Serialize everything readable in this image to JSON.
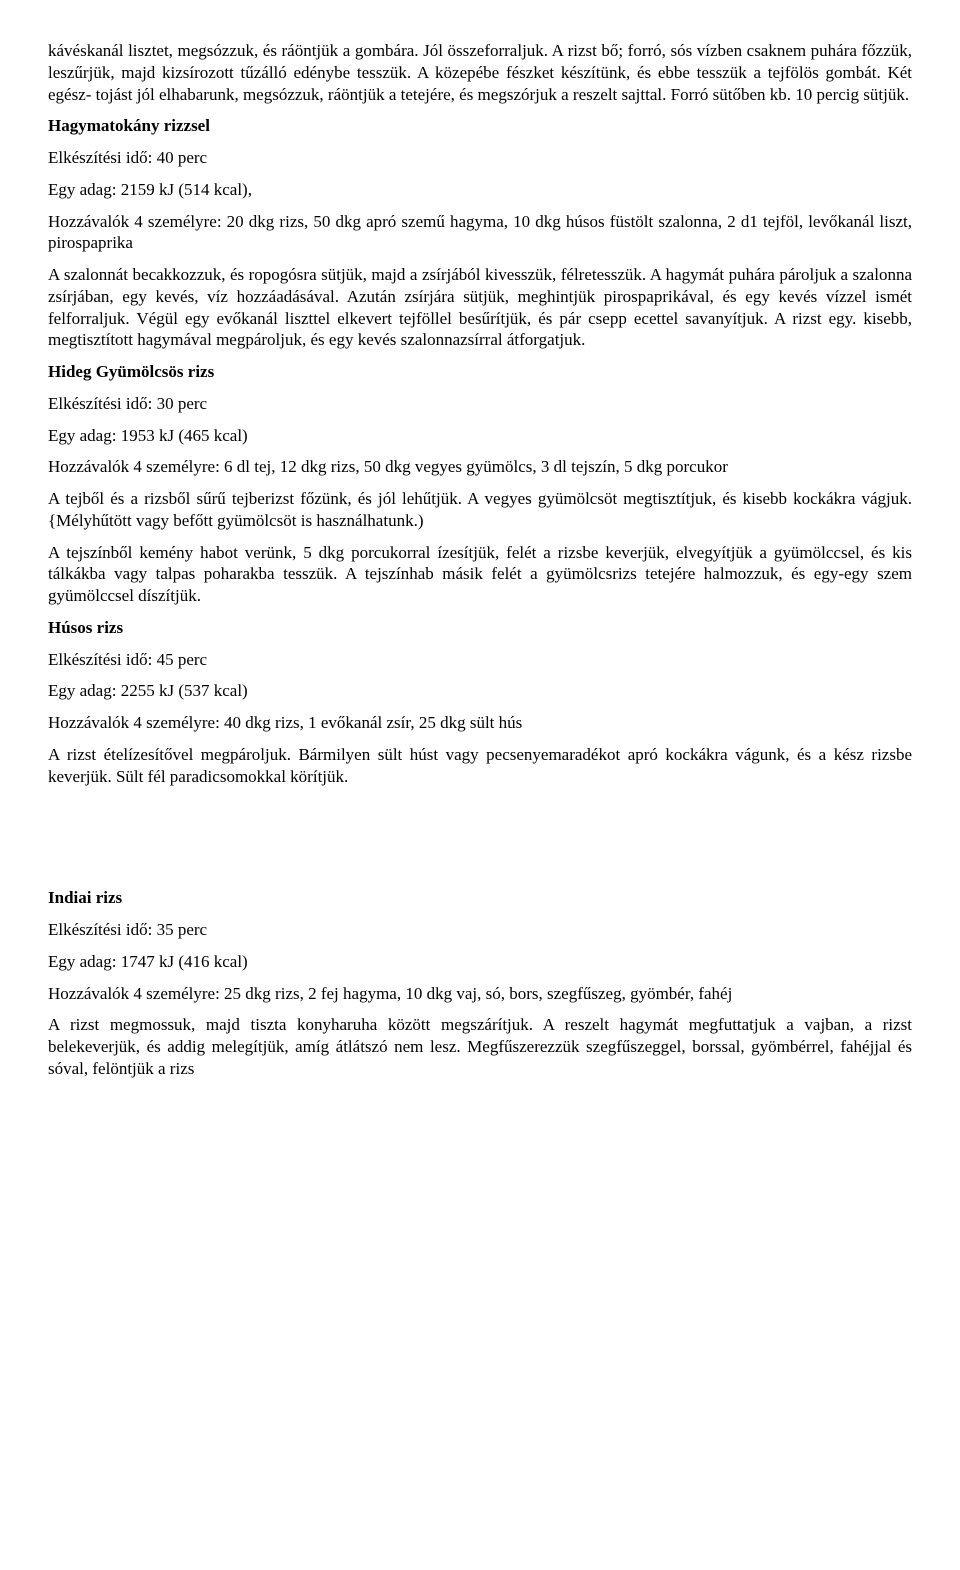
{
  "paragraphs": [
    {
      "name": "intro-p1",
      "bold": false,
      "text": "kávéskanál lisztet, megsózzuk, és ráöntjük a gombára. Jól összeforraljuk. A rizst bő; forró, sós vízben csaknem puhára főzzük, leszűrjük, majd kizsírozott tűzálló edénybe tesszük. A közepébe fészket készítünk, és ebbe tesszük a tejfölös gombát. Két egész- tojást jól elhabarunk, megsózzuk, ráöntjük a tetejére, és megszórjuk a reszelt sajttal. Forró sütőben kb. 10 percig sütjük."
    },
    {
      "name": "recipe1-title",
      "bold": true,
      "text": "Hagymatokány rizzsel"
    },
    {
      "name": "recipe1-time",
      "bold": false,
      "text": "Elkészítési idő: 40 perc"
    },
    {
      "name": "recipe1-serving",
      "bold": false,
      "text": "Egy adag: 2159 kJ (514 kcal),"
    },
    {
      "name": "recipe1-ingredients",
      "bold": false,
      "text": "Hozzávalók 4 személyre: 20 dkg rizs, 50 dkg apró szemű hagyma, 10 dkg húsos füstölt szalonna, 2 d1 tejföl, levőkanál liszt, pirospaprika"
    },
    {
      "name": "recipe1-method",
      "bold": false,
      "text": "A szalonnát becakkozzuk, és ropogósra sütjük, majd a zsírjából kivesszük, félretesszük. A hagymát puhára pároljuk a szalonna zsírjában, egy kevés, víz hozzáadásával. Azután zsírjára sütjük, meghintjük pirospaprikával, és egy kevés vízzel ismét felforraljuk. Végül egy evőkanál liszttel elkevert tejföllel besűrítjük, és pár csepp ecettel savanyítjuk. A rizst egy. kisebb, megtisztított hagymával megpároljuk, és egy kevés szalonnazsírral átforgatjuk."
    },
    {
      "name": "recipe2-title",
      "bold": true,
      "text": "Hideg Gyümölcsös rizs"
    },
    {
      "name": "recipe2-time",
      "bold": false,
      "text": "Elkészítési idő: 30 perc"
    },
    {
      "name": "recipe2-serving",
      "bold": false,
      "text": "Egy adag: 1953 kJ (465 kcal)"
    },
    {
      "name": "recipe2-ingredients",
      "bold": false,
      "text": "Hozzávalók 4 személyre: 6 dl tej, 12 dkg rizs, 50 dkg vegyes gyümölcs, 3 dl tejszín, 5 dkg porcukor"
    },
    {
      "name": "recipe2-method1",
      "bold": false,
      "text": "A tejből és a rizsből sűrű tejberizst főzünk, és jól lehűtjük. A vegyes gyümölcsöt megtisztítjuk, és kisebb kockákra vágjuk. {Mélyhűtött vagy befőtt gyümölcsöt is használhatunk.)"
    },
    {
      "name": "recipe2-method2",
      "bold": false,
      "text": "A tejszínből kemény habot verünk, 5 dkg porcukorral ízesítjük, felét a rizsbe keverjük, elvegyítjük a gyümölccsel, és kis tálkákba vagy talpas poharakba tesszük. A tejszínhab másik felét a gyümölcsrizs tetejére halmozzuk, és egy-egy szem gyümölccsel díszítjük."
    },
    {
      "name": "recipe3-title",
      "bold": true,
      "text": "Húsos rizs"
    },
    {
      "name": "recipe3-time",
      "bold": false,
      "text": "Elkészítési idő: 45 perc"
    },
    {
      "name": "recipe3-serving",
      "bold": false,
      "text": "Egy adag: 2255 kJ (537 kcal)"
    },
    {
      "name": "recipe3-ingredients",
      "bold": false,
      "text": "Hozzávalók 4 személyre: 40 dkg rizs, 1 evőkanál zsír, 25 dkg sült hús"
    },
    {
      "name": "recipe3-method",
      "bold": false,
      "text": "A rizst ételízesítővel megpároljuk. Bármilyen sült húst vagy pecsenyemaradékot apró kockákra vágunk, és a kész rizsbe keverjük. Sült fél paradicsomokkal körítjük."
    },
    {
      "name": "recipe4-title",
      "bold": true,
      "text": "Indiai rizs"
    },
    {
      "name": "recipe4-time",
      "bold": false,
      "text": "Elkészítési idő: 35 perc"
    },
    {
      "name": "recipe4-serving",
      "bold": false,
      "text": "Egy adag: 1747 kJ (416 kcal)"
    },
    {
      "name": "recipe4-ingredients",
      "bold": false,
      "text": "Hozzávalók 4 személyre: 25 dkg rizs, 2 fej hagyma, 10 dkg vaj, só, bors, szegfűszeg, gyömbér, fahéj"
    },
    {
      "name": "recipe4-method",
      "bold": false,
      "text": "A rizst megmossuk, majd tiszta konyharuha között megszárítjuk. A reszelt hagymát megfuttatjuk a vajban, a rizst belekeverjük, és addig melegítjük, amíg átlátszó nem lesz. Megfűszerezzük szegfűszeggel, borssal, gyömbérrel, fahéjjal és sóval, felöntjük a rizs"
    }
  ],
  "gapBefore": 17,
  "gapHeight": 90
}
